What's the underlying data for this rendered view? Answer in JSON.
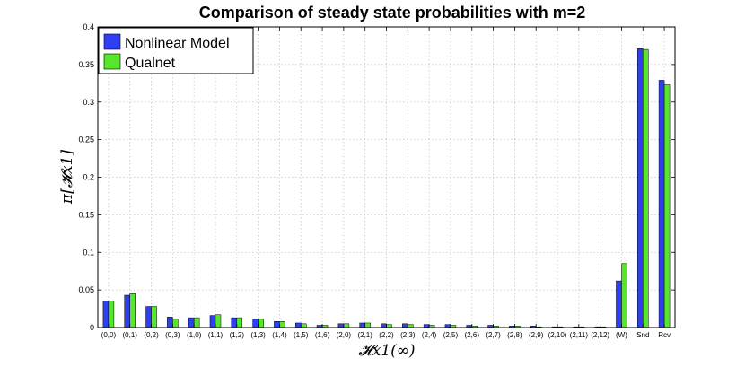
{
  "chart_data": {
    "type": "bar",
    "title": "Comparison of steady state probabilities with m=2",
    "xlabel": "𝓗x1(∞)",
    "ylabel": "π[𝓗x1]",
    "ylim": [
      0,
      0.4
    ],
    "yticks": [
      "0",
      "0.05",
      "0.1",
      "0.15",
      "0.2",
      "0.25",
      "0.3",
      "0.35",
      "0.4"
    ],
    "ytick_values": [
      0,
      0.05,
      0.1,
      0.15,
      0.2,
      0.25,
      0.3,
      0.35,
      0.4
    ],
    "grid": true,
    "legend_position": "top-left",
    "categories": [
      "(0,0)",
      "(0,1)",
      "(0,2)",
      "(0,3)",
      "(1,0)",
      "(1,1)",
      "(1,2)",
      "(1,3)",
      "(1,4)",
      "(1,5)",
      "(1,6)",
      "(2,0)",
      "(2,1)",
      "(2,2)",
      "(2,3)",
      "(2,4)",
      "(2,5)",
      "(2,6)",
      "(2,7)",
      "(2,8)",
      "(2,9)",
      "(2,10)",
      "(2,11)",
      "(2,12)",
      "(W)",
      "Snd",
      "Rcv"
    ],
    "series": [
      {
        "name": "Nonlinear Model",
        "color": "#2e3ff5",
        "values": [
          0.035,
          0.043,
          0.028,
          0.014,
          0.013,
          0.016,
          0.013,
          0.011,
          0.008,
          0.006,
          0.003,
          0.005,
          0.006,
          0.005,
          0.005,
          0.004,
          0.004,
          0.003,
          0.003,
          0.002,
          0.002,
          0.001,
          0.001,
          0.001,
          0.062,
          0.371,
          0.329
        ]
      },
      {
        "name": "Qualnet",
        "color": "#55e82a",
        "values": [
          0.035,
          0.045,
          0.028,
          0.011,
          0.013,
          0.017,
          0.013,
          0.011,
          0.008,
          0.005,
          0.003,
          0.005,
          0.006,
          0.004,
          0.004,
          0.003,
          0.003,
          0.002,
          0.002,
          0.002,
          0.001,
          0.001,
          0.001,
          0.001,
          0.085,
          0.37,
          0.323
        ]
      }
    ]
  }
}
